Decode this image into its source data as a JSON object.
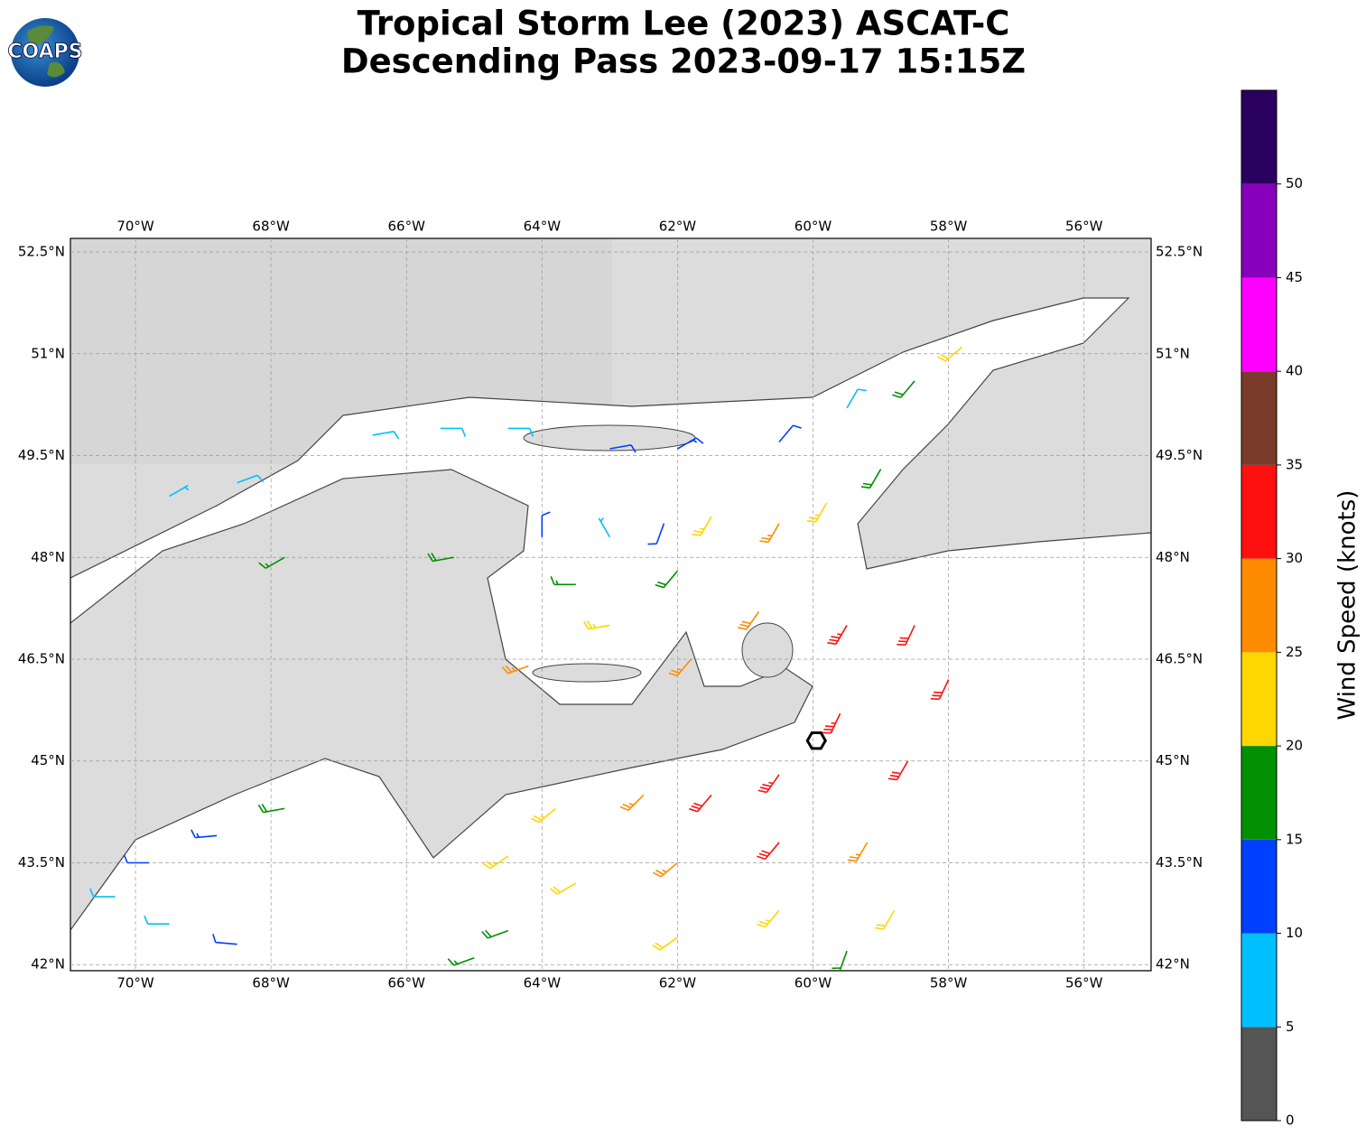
{
  "chart_data": {
    "type": "barbs",
    "title": "Tropical Storm Lee (2023) ASCAT-C",
    "subtitle": "Descending Pass 2023-09-17 15:15Z",
    "logo": "COAPS",
    "xlim": [
      -70.96,
      -55.01
    ],
    "ylim": [
      41.91,
      52.7
    ],
    "xticks": [
      {
        "value": -70,
        "label": "70°W"
      },
      {
        "value": -68,
        "label": "68°W"
      },
      {
        "value": -66,
        "label": "66°W"
      },
      {
        "value": -64,
        "label": "64°W"
      },
      {
        "value": -62,
        "label": "62°W"
      },
      {
        "value": -60,
        "label": "60°W"
      },
      {
        "value": -58,
        "label": "58°W"
      },
      {
        "value": -56,
        "label": "56°W"
      }
    ],
    "yticks": [
      {
        "value": 42,
        "label": "42°N"
      },
      {
        "value": 43.5,
        "label": "43.5°N"
      },
      {
        "value": 45,
        "label": "45°N"
      },
      {
        "value": 46.5,
        "label": "46.5°N"
      },
      {
        "value": 48,
        "label": "48°N"
      },
      {
        "value": 49.5,
        "label": "49.5°N"
      },
      {
        "value": 51,
        "label": "51°N"
      },
      {
        "value": 52.5,
        "label": "52.5°N"
      }
    ],
    "grid": true,
    "center": {
      "lon": -59.95,
      "lat": 45.3
    },
    "barbs": {
      "lon": [
        -69.5,
        -68.5,
        -66.5,
        -65.5,
        -64.5,
        -63,
        -62,
        -60.5,
        -59.5,
        -58.5,
        -57.8,
        -59,
        -64,
        -63,
        -62.2,
        -63.5,
        -63,
        -64.2,
        -62,
        -61.5,
        -60.5,
        -59.8,
        -61.8,
        -60.8,
        -59.5,
        -58.5,
        -58,
        -59.6,
        -58.6,
        -60.5,
        -61.5,
        -62.5,
        -63.8,
        -64.5,
        -63.5,
        -62,
        -60.5,
        -59.2,
        -58.8,
        -60.5,
        -62,
        -64.5,
        -65,
        -59.5,
        -67.8,
        -68.8,
        -69.8,
        -70.3,
        -69.5,
        -68.5,
        -67.8,
        -65.3
      ],
      "lat": [
        48.9,
        49.1,
        49.8,
        49.9,
        49.9,
        49.6,
        49.6,
        49.7,
        50.2,
        50.6,
        51.1,
        49.3,
        48.3,
        48.3,
        48.5,
        47.6,
        47.0,
        46.4,
        47.8,
        48.6,
        48.5,
        48.8,
        46.5,
        47.2,
        47.0,
        47.0,
        46.2,
        45.7,
        45.0,
        44.8,
        44.5,
        44.5,
        44.3,
        43.6,
        43.2,
        43.5,
        43.8,
        43.8,
        42.8,
        42.8,
        42.4,
        42.5,
        42.1,
        42.2,
        44.3,
        43.9,
        43.5,
        43.0,
        42.6,
        42.3,
        48.0,
        48.0
      ],
      "speed": [
        7,
        8,
        8,
        9,
        8,
        12,
        13,
        12,
        8,
        18,
        22,
        18,
        12,
        7,
        12,
        17,
        23,
        27,
        18,
        24,
        27,
        23,
        27,
        28,
        33,
        32,
        31,
        33,
        32,
        33,
        31,
        27,
        24,
        23,
        22,
        27,
        31,
        26,
        22,
        24,
        21,
        18,
        17,
        18,
        18,
        13,
        12,
        8,
        8,
        12,
        17,
        18
      ],
      "direction": [
        60,
        70,
        80,
        90,
        90,
        80,
        60,
        40,
        30,
        220,
        230,
        210,
        0,
        330,
        200,
        270,
        260,
        250,
        220,
        210,
        210,
        210,
        220,
        215,
        210,
        205,
        205,
        205,
        210,
        215,
        220,
        225,
        230,
        235,
        240,
        230,
        220,
        210,
        210,
        220,
        235,
        250,
        250,
        200,
        260,
        265,
        270,
        270,
        270,
        275,
        240,
        260
      ]
    },
    "colorbar": {
      "label": "Wind Speed (knots)",
      "bounds": [
        0,
        5,
        10,
        15,
        20,
        25,
        30,
        35,
        40,
        45,
        50,
        55
      ],
      "colors": [
        "#555555",
        "#00bfff",
        "#0040ff",
        "#009000",
        "#ffd700",
        "#ff8c00",
        "#ff1010",
        "#7a3b2a",
        "#ff00ff",
        "#8800bb",
        "#2a0060"
      ],
      "lim": [
        0,
        55
      ],
      "ticks": [
        0,
        5,
        10,
        15,
        20,
        25,
        30,
        35,
        40,
        45,
        50
      ]
    }
  }
}
